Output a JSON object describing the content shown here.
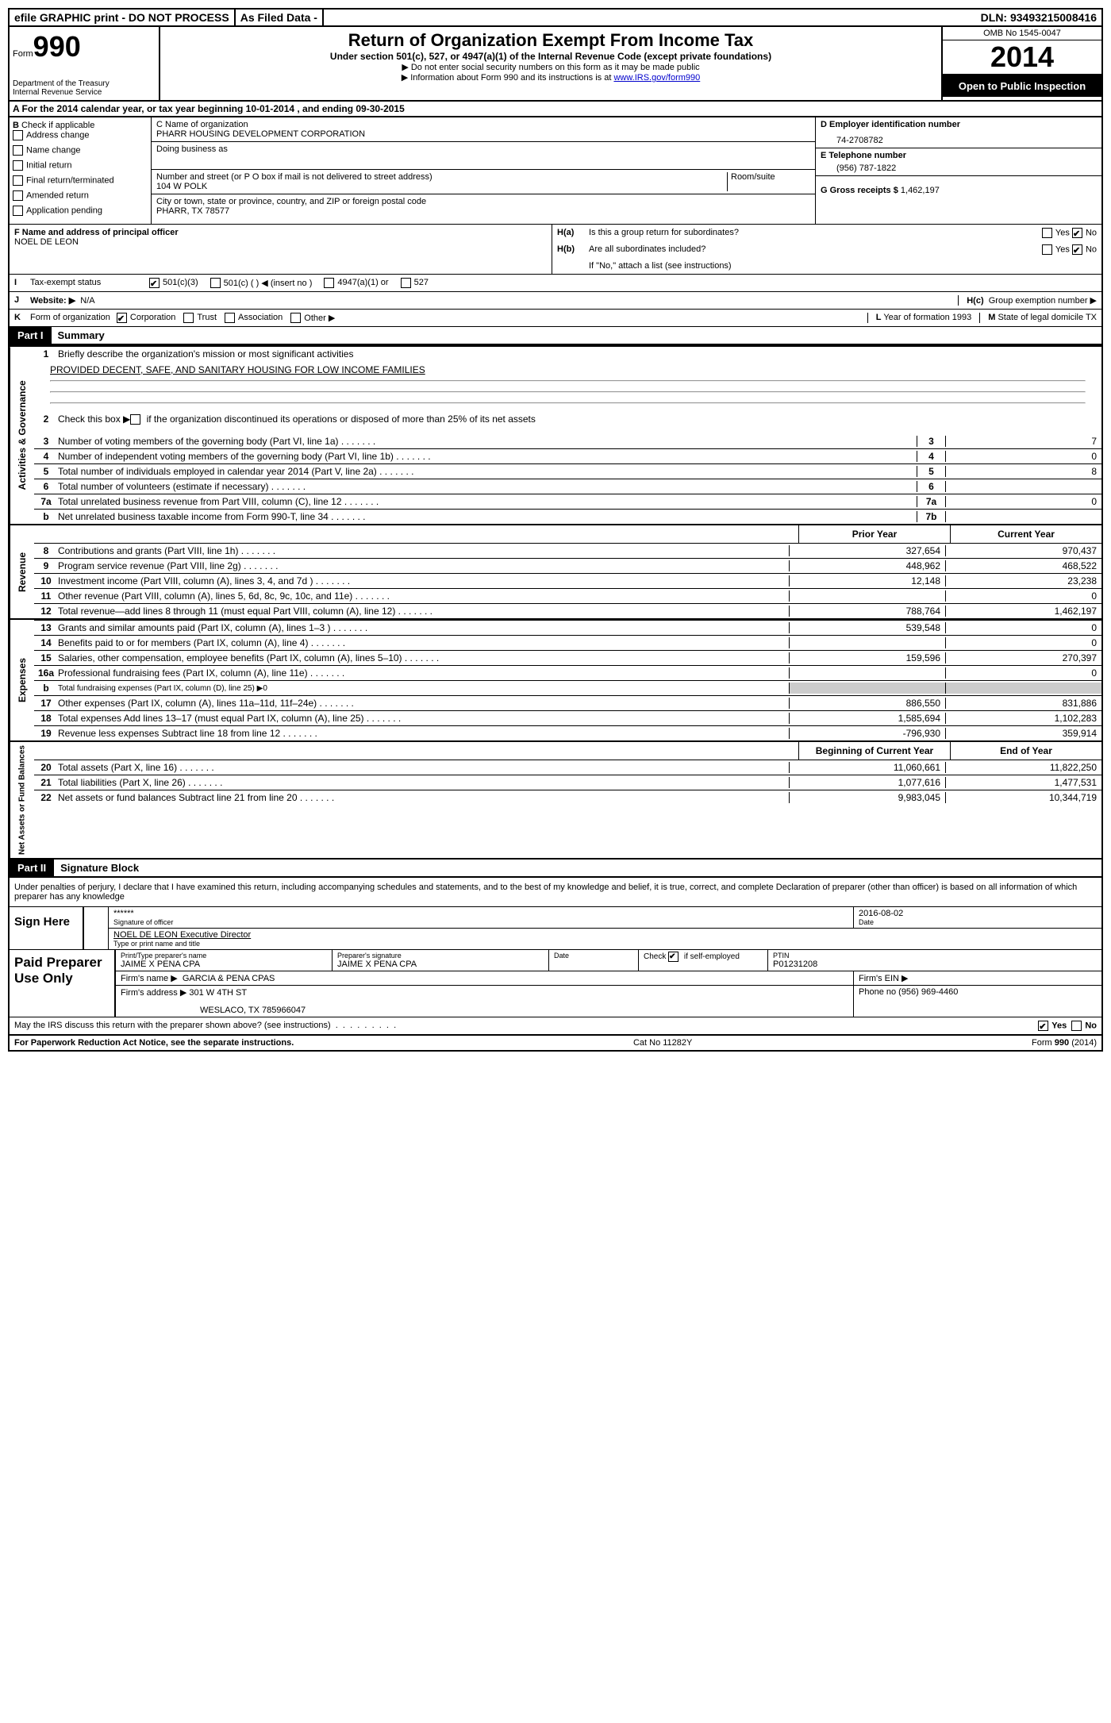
{
  "topbar": {
    "efile": "efile GRAPHIC print - DO NOT PROCESS",
    "asfiled": "As Filed Data -",
    "dln": "DLN: 93493215008416"
  },
  "header": {
    "form_label": "Form",
    "form_num": "990",
    "dept1": "Department of the Treasury",
    "dept2": "Internal Revenue Service",
    "title": "Return of Organization Exempt From Income Tax",
    "subtitle": "Under section 501(c), 527, or 4947(a)(1) of the Internal Revenue Code (except private foundations)",
    "note1": "▶ Do not enter social security numbers on this form as it may be made public",
    "note2": "▶ Information about Form 990 and its instructions is at ",
    "note2_link": "www.IRS.gov/form990",
    "omb": "OMB No 1545-0047",
    "year": "2014",
    "open": "Open to Public Inspection"
  },
  "sectionA": "A  For the 2014 calendar year, or tax year beginning 10-01-2014     , and ending 09-30-2015",
  "sectionB": {
    "title": "B",
    "check_label": "Check if applicable",
    "items": [
      "Address change",
      "Name change",
      "Initial return",
      "Final return/terminated",
      "Amended return",
      "Application pending"
    ]
  },
  "sectionC": {
    "name_label": "C Name of organization",
    "name": "PHARR HOUSING DEVELOPMENT CORPORATION",
    "dba_label": "Doing business as",
    "street_label": "Number and street (or P O  box if mail is not delivered to street address)",
    "room_label": "Room/suite",
    "street": "104 W POLK",
    "city_label": "City or town, state or province, country, and ZIP or foreign postal code",
    "city": "PHARR, TX  78577"
  },
  "sectionD": {
    "ein_label": "D Employer identification number",
    "ein": "74-2708782",
    "phone_label": "E Telephone number",
    "phone": "(956) 787-1822",
    "gross_label": "G Gross receipts $",
    "gross": "1,462,197"
  },
  "sectionF": {
    "label": "F   Name and address of principal officer",
    "name": "NOEL DE LEON"
  },
  "sectionH": {
    "ha_label": "H(a)",
    "ha_text": "Is this a group return for subordinates?",
    "hb_label": "H(b)",
    "hb_text": "Are all subordinates included?",
    "hb_note": "If \"No,\" attach a list  (see instructions)",
    "hc_label": "H(c)",
    "hc_text": "Group exemption number ▶",
    "yes": "Yes",
    "no": "No"
  },
  "sectionI": {
    "label": "I",
    "text": "Tax-exempt status",
    "opt1": "501(c)(3)",
    "opt2": "501(c) (   ) ◀ (insert no )",
    "opt3": "4947(a)(1) or",
    "opt4": "527"
  },
  "sectionJ": {
    "label": "J",
    "text": "Website: ▶",
    "value": "N/A"
  },
  "sectionK": {
    "label": "K",
    "text": "Form of organization",
    "opts": [
      "Corporation",
      "Trust",
      "Association",
      "Other ▶"
    ]
  },
  "sectionL": {
    "label": "L",
    "text": "Year of formation  1993"
  },
  "sectionM": {
    "label": "M",
    "text": "State of legal domicile  TX"
  },
  "part1": {
    "label": "Part I",
    "title": "Summary"
  },
  "summary": {
    "line1_label": "1",
    "line1_text": "Briefly describe the organization's mission or most significant activities",
    "line1_value": "PROVIDED DECENT, SAFE, AND SANITARY HOUSING FOR LOW INCOME FAMILIES",
    "line2_label": "2",
    "line2_text": "Check this box ▶    if the organization discontinued its operations or disposed of more than 25% of its net assets",
    "governance_label": "Activities & Governance",
    "revenue_label": "Revenue",
    "expenses_label": "Expenses",
    "netassets_label": "Net Assets or Fund Balances",
    "prior_year": "Prior Year",
    "current_year": "Current Year",
    "begin_year": "Beginning of Current Year",
    "end_year": "End of Year",
    "lines_gov": [
      {
        "num": "3",
        "text": "Number of voting members of the governing body (Part VI, line 1a)",
        "box": "3",
        "val": "7"
      },
      {
        "num": "4",
        "text": "Number of independent voting members of the governing body (Part VI, line 1b)",
        "box": "4",
        "val": "0"
      },
      {
        "num": "5",
        "text": "Total number of individuals employed in calendar year 2014 (Part V, line 2a)",
        "box": "5",
        "val": "8"
      },
      {
        "num": "6",
        "text": "Total number of volunteers (estimate if necessary)",
        "box": "6",
        "val": ""
      },
      {
        "num": "7a",
        "text": "Total unrelated business revenue from Part VIII, column (C), line 12",
        "box": "7a",
        "val": "0"
      },
      {
        "num": "b",
        "text": "Net unrelated business taxable income from Form 990-T, line 34",
        "box": "7b",
        "val": ""
      }
    ],
    "lines_rev": [
      {
        "num": "8",
        "text": "Contributions and grants (Part VIII, line 1h)",
        "prior": "327,654",
        "curr": "970,437"
      },
      {
        "num": "9",
        "text": "Program service revenue (Part VIII, line 2g)",
        "prior": "448,962",
        "curr": "468,522"
      },
      {
        "num": "10",
        "text": "Investment income (Part VIII, column (A), lines 3, 4, and 7d )",
        "prior": "12,148",
        "curr": "23,238"
      },
      {
        "num": "11",
        "text": "Other revenue (Part VIII, column (A), lines 5, 6d, 8c, 9c, 10c, and 11e)",
        "prior": "",
        "curr": "0"
      },
      {
        "num": "12",
        "text": "Total revenue—add lines 8 through 11 (must equal Part VIII, column (A), line 12)",
        "prior": "788,764",
        "curr": "1,462,197"
      }
    ],
    "lines_exp": [
      {
        "num": "13",
        "text": "Grants and similar amounts paid (Part IX, column (A), lines 1–3 )",
        "prior": "539,548",
        "curr": "0"
      },
      {
        "num": "14",
        "text": "Benefits paid to or for members (Part IX, column (A), line 4)",
        "prior": "",
        "curr": "0"
      },
      {
        "num": "15",
        "text": "Salaries, other compensation, employee benefits (Part IX, column (A), lines 5–10)",
        "prior": "159,596",
        "curr": "270,397"
      },
      {
        "num": "16a",
        "text": "Professional fundraising fees (Part IX, column (A), line 11e)",
        "prior": "",
        "curr": "0"
      },
      {
        "num": "b",
        "text": "Total fundraising expenses (Part IX, column (D), line 25)  ▶0",
        "prior": "",
        "curr": "",
        "small": true
      },
      {
        "num": "17",
        "text": "Other expenses (Part IX, column (A), lines 11a–11d, 11f–24e)",
        "prior": "886,550",
        "curr": "831,886"
      },
      {
        "num": "18",
        "text": "Total expenses  Add lines 13–17 (must equal Part IX, column (A), line 25)",
        "prior": "1,585,694",
        "curr": "1,102,283"
      },
      {
        "num": "19",
        "text": "Revenue less expenses  Subtract line 18 from line 12",
        "prior": "-796,930",
        "curr": "359,914"
      }
    ],
    "lines_net": [
      {
        "num": "20",
        "text": "Total assets (Part X, line 16)",
        "prior": "11,060,661",
        "curr": "11,822,250"
      },
      {
        "num": "21",
        "text": "Total liabilities (Part X, line 26)",
        "prior": "1,077,616",
        "curr": "1,477,531"
      },
      {
        "num": "22",
        "text": "Net assets or fund balances  Subtract line 21 from line 20",
        "prior": "9,983,045",
        "curr": "10,344,719"
      }
    ]
  },
  "part2": {
    "label": "Part II",
    "title": "Signature Block"
  },
  "signature": {
    "declaration": "Under penalties of perjury, I declare that I have examined this return, including accompanying schedules and statements, and to the best of my knowledge and belief, it is true, correct, and complete  Declaration of preparer (other than officer) is based on all information of which preparer has any knowledge",
    "sign_here": "Sign Here",
    "stars": "******",
    "sig_officer_label": "Signature of officer",
    "date_label": "Date",
    "date": "2016-08-02",
    "officer_name": "NOEL DE LEON Executive Director",
    "type_label": "Type or print name and title",
    "paid": "Paid Preparer Use Only",
    "prep_name_label": "Print/Type preparer's name",
    "prep_name": "JAIME X PENA CPA",
    "prep_sig_label": "Preparer's signature",
    "prep_sig": "JAIME X PENA CPA",
    "check_self": "Check      if self-employed",
    "ptin_label": "PTIN",
    "ptin": "P01231208",
    "firm_name_label": "Firm's name    ▶",
    "firm_name": "GARCIA & PENA CPAS",
    "firm_ein_label": "Firm's EIN ▶",
    "firm_addr_label": "Firm's address ▶",
    "firm_addr1": "301 W 4TH ST",
    "firm_addr2": "WESLACO, TX  785966047",
    "firm_phone_label": "Phone no  (956) 969-4460",
    "discuss": "May the IRS discuss this return with the preparer shown above? (see instructions)",
    "yes": "Yes",
    "no": "No"
  },
  "footer": {
    "paperwork": "For Paperwork Reduction Act Notice, see the separate instructions.",
    "cat": "Cat No 11282Y",
    "form": "Form 990 (2014)"
  }
}
